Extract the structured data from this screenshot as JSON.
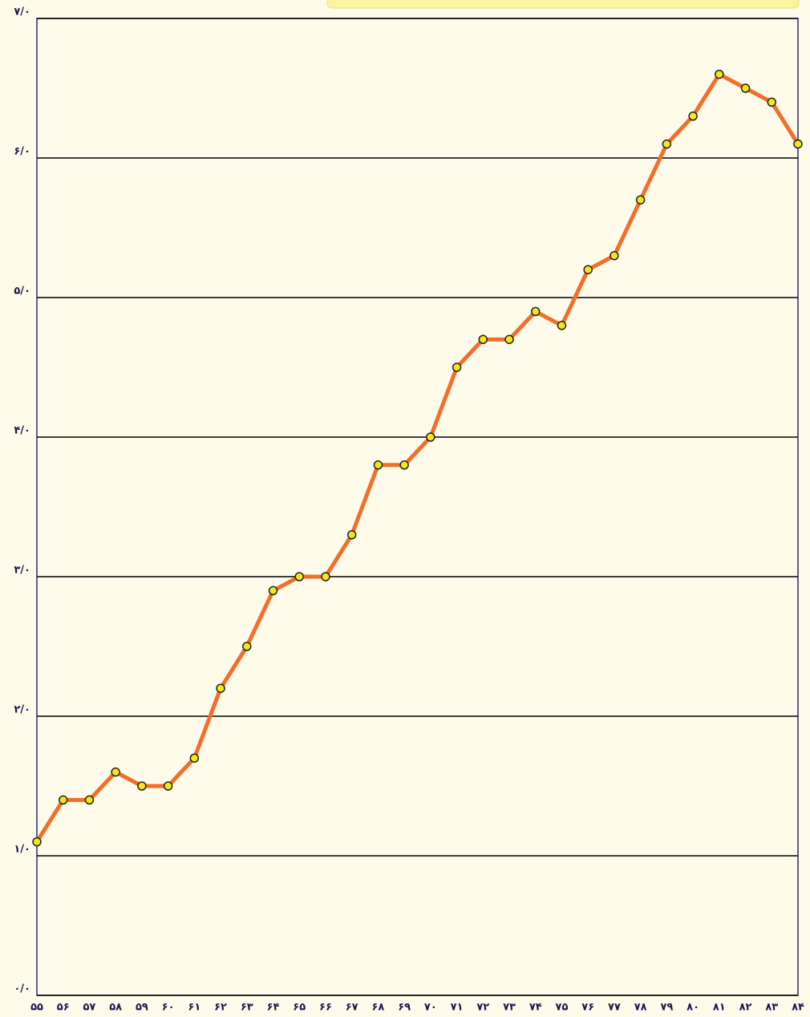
{
  "chart_data": {
    "type": "line",
    "categories": [
      "۵۵",
      "۵۶",
      "۵۷",
      "۵۸",
      "۵۹",
      "۶۰",
      "۶۱",
      "۶۲",
      "۶۳",
      "۶۴",
      "۶۵",
      "۶۶",
      "۶۷",
      "۶۸",
      "۶۹",
      "۷۰",
      "۷۱",
      "۷۲",
      "۷۳",
      "۷۴",
      "۷۵",
      "۷۶",
      "۷۷",
      "۷۸",
      "۷۹",
      "۸۰",
      "۸۱",
      "۸۲",
      "۸۳",
      "۸۴"
    ],
    "values": [
      1.1,
      1.4,
      1.4,
      1.6,
      1.5,
      1.5,
      1.7,
      2.2,
      2.5,
      2.9,
      3.0,
      3.0,
      3.3,
      3.8,
      3.8,
      4.0,
      4.5,
      4.7,
      4.7,
      4.9,
      4.8,
      5.2,
      5.3,
      5.7,
      6.1,
      6.3,
      6.6,
      6.5,
      6.4,
      6.1
    ],
    "color": "#f26f2a",
    "marker_color": "#f5e51c",
    "ylim": [
      0,
      7
    ],
    "yticks": [
      {
        "value": 0,
        "label": "۰/۰"
      },
      {
        "value": 1,
        "label": "۱/۰"
      },
      {
        "value": 2,
        "label": "۲/۰"
      },
      {
        "value": 3,
        "label": "۳/۰"
      },
      {
        "value": 4,
        "label": "۴/۰"
      },
      {
        "value": 5,
        "label": "۵/۰"
      },
      {
        "value": 6,
        "label": "۶/۰"
      },
      {
        "value": 7,
        "label": "۷/۰"
      }
    ],
    "grid": true
  }
}
